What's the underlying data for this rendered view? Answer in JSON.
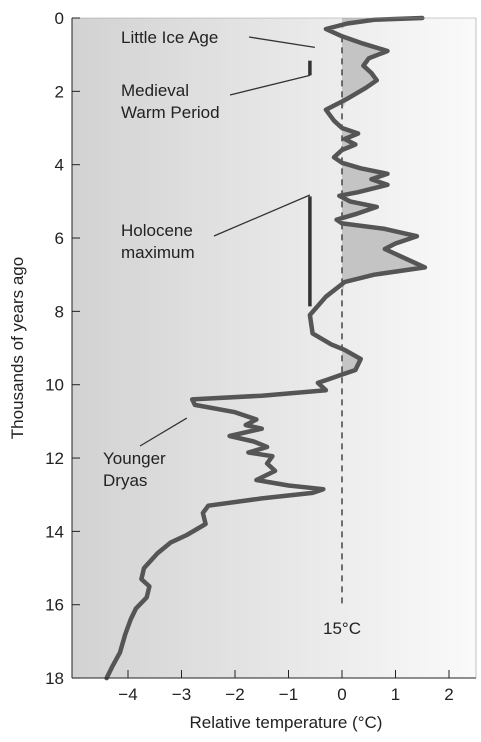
{
  "chart_data": {
    "type": "line",
    "xlabel": "Relative temperature (°C)",
    "ylabel": "Thousands of years ago",
    "xlim": [
      -4.2,
      2.5
    ],
    "ylim": [
      18,
      0
    ],
    "x_ticks": [
      "−4",
      "−3",
      "−2",
      "−1",
      "0",
      "1",
      "2"
    ],
    "y_ticks": [
      "0",
      "2",
      "4",
      "6",
      "8",
      "10",
      "12",
      "14",
      "16",
      "18"
    ],
    "x_tick_values": [
      -4,
      -3,
      -2,
      -1,
      0,
      1,
      2
    ],
    "y_tick_values": [
      0,
      2,
      4,
      6,
      8,
      10,
      12,
      14,
      16,
      18
    ],
    "reference_line": {
      "x": 0,
      "label": "15°C"
    },
    "series": [
      {
        "points": [
          [
            1.5,
            0.0
          ],
          [
            0.6,
            0.05
          ],
          [
            0.1,
            0.15
          ],
          [
            -0.3,
            0.3
          ],
          [
            0.0,
            0.5
          ],
          [
            0.4,
            0.7
          ],
          [
            0.85,
            0.9
          ],
          [
            0.5,
            1.1
          ],
          [
            0.4,
            1.3
          ],
          [
            0.55,
            1.5
          ],
          [
            0.65,
            1.7
          ],
          [
            0.45,
            1.9
          ],
          [
            0.1,
            2.2
          ],
          [
            -0.3,
            2.5
          ],
          [
            -0.15,
            2.8
          ],
          [
            0.0,
            3.0
          ],
          [
            0.3,
            3.15
          ],
          [
            0.05,
            3.3
          ],
          [
            0.25,
            3.45
          ],
          [
            0.0,
            3.6
          ],
          [
            -0.15,
            3.8
          ],
          [
            0.0,
            3.95
          ],
          [
            0.35,
            4.1
          ],
          [
            0.85,
            4.25
          ],
          [
            0.55,
            4.4
          ],
          [
            0.85,
            4.55
          ],
          [
            0.3,
            4.75
          ],
          [
            -0.05,
            4.85
          ],
          [
            0.15,
            5.0
          ],
          [
            0.65,
            5.15
          ],
          [
            0.25,
            5.35
          ],
          [
            -0.1,
            5.5
          ],
          [
            0.0,
            5.6
          ],
          [
            0.8,
            5.75
          ],
          [
            1.4,
            5.95
          ],
          [
            1.0,
            6.15
          ],
          [
            0.8,
            6.3
          ],
          [
            1.1,
            6.5
          ],
          [
            1.55,
            6.8
          ],
          [
            0.6,
            7.0
          ],
          [
            0.05,
            7.2
          ],
          [
            -0.3,
            7.6
          ],
          [
            -0.6,
            8.1
          ],
          [
            -0.55,
            8.6
          ],
          [
            -0.2,
            8.9
          ],
          [
            0.05,
            9.05
          ],
          [
            0.35,
            9.3
          ],
          [
            0.25,
            9.6
          ],
          [
            -0.05,
            9.75
          ],
          [
            -0.25,
            9.85
          ],
          [
            -0.45,
            9.95
          ],
          [
            -0.3,
            10.15
          ],
          [
            -1.5,
            10.3
          ],
          [
            -2.8,
            10.4
          ],
          [
            -2.75,
            10.55
          ],
          [
            -2.0,
            10.75
          ],
          [
            -1.6,
            10.95
          ],
          [
            -1.8,
            11.1
          ],
          [
            -1.5,
            11.2
          ],
          [
            -2.1,
            11.4
          ],
          [
            -1.65,
            11.55
          ],
          [
            -1.4,
            11.7
          ],
          [
            -1.75,
            11.85
          ],
          [
            -1.3,
            11.95
          ],
          [
            -1.4,
            12.15
          ],
          [
            -1.25,
            12.35
          ],
          [
            -1.6,
            12.6
          ],
          [
            -1.0,
            12.75
          ],
          [
            -0.35,
            12.85
          ],
          [
            -0.55,
            12.95
          ],
          [
            -1.5,
            13.1
          ],
          [
            -2.5,
            13.3
          ],
          [
            -2.6,
            13.5
          ],
          [
            -2.55,
            13.8
          ],
          [
            -2.9,
            14.1
          ],
          [
            -3.2,
            14.3
          ],
          [
            -3.45,
            14.6
          ],
          [
            -3.7,
            15.0
          ],
          [
            -3.75,
            15.3
          ],
          [
            -3.6,
            15.5
          ],
          [
            -3.65,
            15.8
          ],
          [
            -3.85,
            16.1
          ],
          [
            -3.95,
            16.4
          ],
          [
            -4.05,
            16.8
          ],
          [
            -4.15,
            17.3
          ],
          [
            -4.3,
            17.7
          ],
          [
            -4.4,
            18.0
          ]
        ]
      }
    ],
    "annotations": [
      {
        "lines": [
          "Little Ice Age"
        ],
        "target": [
          -0.6,
          0.5
        ]
      },
      {
        "lines": [
          "Medieval",
          "Warm Period"
        ],
        "span": [
          -0.6,
          0.7,
          1.1
        ]
      },
      {
        "lines": [
          "Holocene",
          "maximum"
        ],
        "span": [
          -0.6,
          4.4,
          7.4
        ]
      },
      {
        "lines": [
          "Younger",
          "Dryas"
        ],
        "target": [
          -2.9,
          10.5
        ]
      }
    ]
  }
}
